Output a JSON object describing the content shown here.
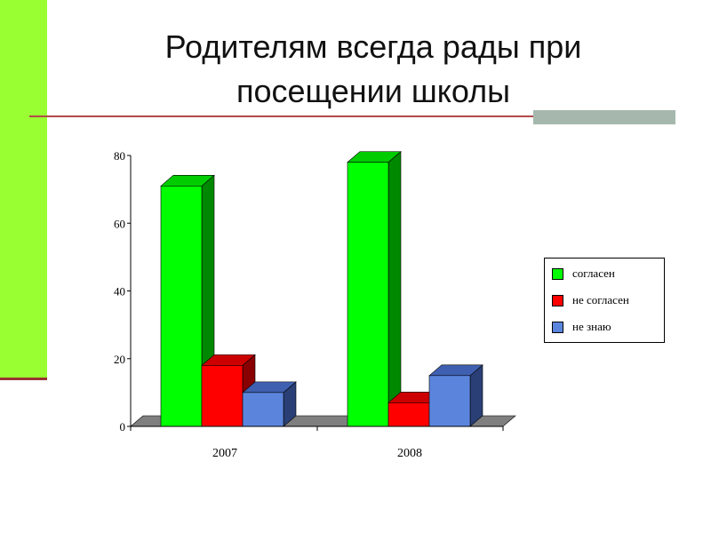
{
  "slide": {
    "title_line1": "Родителям всегда рады при",
    "title_line2": "посещении школы"
  },
  "colors": {
    "accent_strip": "#99ff33",
    "title_rule": "#b44a4a"
  },
  "chart_data": {
    "type": "bar",
    "style": "3d-clustered",
    "categories": [
      "2007",
      "2008"
    ],
    "series": [
      {
        "name": "согласен",
        "values": [
          71,
          78
        ],
        "color": "#00ff00",
        "side": "#008800",
        "top": "#00cc00"
      },
      {
        "name": "не согласен",
        "values": [
          18,
          7
        ],
        "color": "#ff0000",
        "side": "#880000",
        "top": "#cc0000"
      },
      {
        "name": "не знаю",
        "values": [
          10,
          15
        ],
        "color": "#5b85dd",
        "side": "#2a3f75",
        "top": "#3f60b0"
      }
    ],
    "yticks": [
      "0",
      "20",
      "40",
      "60",
      "80"
    ],
    "ylim": [
      0,
      80
    ],
    "grid": false,
    "legend_position": "right"
  }
}
